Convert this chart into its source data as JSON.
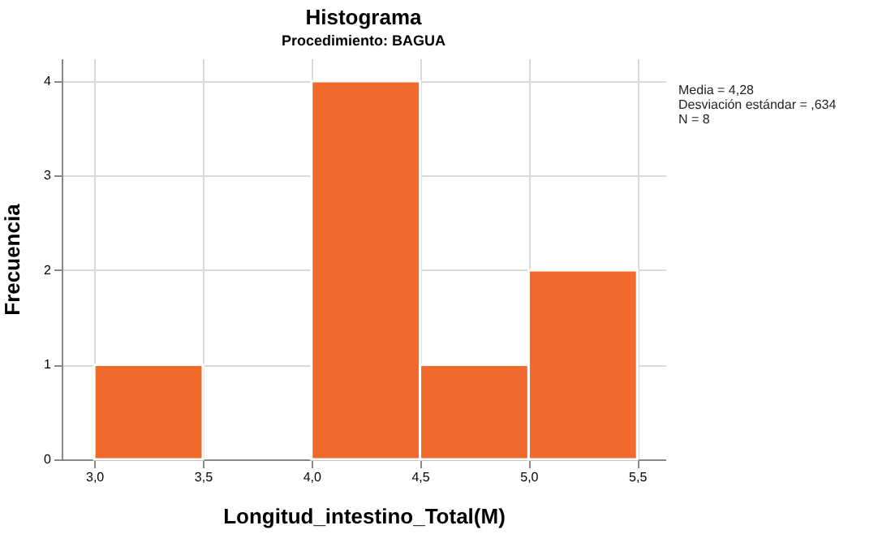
{
  "chart_data": {
    "type": "histogram",
    "title": "Histograma",
    "subtitle": "Procedimiento: BAGUA",
    "xlabel": "Longitud_intestino_Total(M)",
    "ylabel": "Frecuencia",
    "bins": [
      3.0,
      3.5,
      4.0,
      4.5,
      5.0,
      5.5
    ],
    "values": [
      1,
      0,
      4,
      1,
      2
    ],
    "color": "#f2692c",
    "xlim": [
      2.85,
      5.63
    ],
    "ylim": [
      0,
      4.24
    ],
    "xticks": [
      {
        "value": 3.0,
        "label": "3,0"
      },
      {
        "value": 3.5,
        "label": "3,5"
      },
      {
        "value": 4.0,
        "label": "4,0"
      },
      {
        "value": 4.5,
        "label": "4,5"
      },
      {
        "value": 5.0,
        "label": "5,0"
      },
      {
        "value": 5.5,
        "label": "5,5"
      }
    ],
    "yticks": [
      0,
      1,
      2,
      3,
      4
    ],
    "grid": true,
    "annotations": [
      "Media = 4,28",
      "Desviación estándar = ,634",
      "N = 8"
    ]
  }
}
